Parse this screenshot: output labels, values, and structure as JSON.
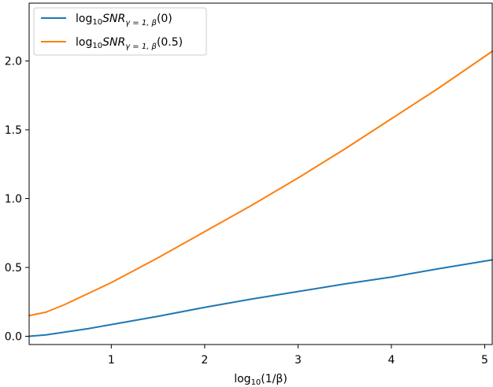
{
  "chart_data": {
    "type": "line",
    "xlabel_main": "log",
    "xlabel_sub": "10",
    "xlabel_rest": "(1/β)",
    "xlim": [
      0.12,
      5.08
    ],
    "ylim": [
      -0.06,
      2.42
    ],
    "xticks": [
      1,
      2,
      3,
      4,
      5
    ],
    "xtick_labels": [
      "1",
      "2",
      "3",
      "4",
      "5"
    ],
    "yticks": [
      0.0,
      0.5,
      1.0,
      1.5,
      2.0
    ],
    "ytick_labels": [
      "0.0",
      "0.5",
      "1.0",
      "1.5",
      "2.0"
    ],
    "grid": false,
    "legend_position": "top-left",
    "series": [
      {
        "name": "log10SNRγ=1,β(0)",
        "legend_main": "log",
        "legend_sub1": "10",
        "legend_snr": "SNR",
        "legend_sub2": "γ = 1, β",
        "legend_arg": "(0)",
        "color": "#1f77b4",
        "x": [
          0.12,
          0.3,
          0.5,
          0.75,
          1.0,
          1.25,
          1.5,
          2.0,
          2.5,
          3.0,
          3.5,
          4.0,
          4.5,
          5.08
        ],
        "y": [
          0.0,
          0.01,
          0.03,
          0.055,
          0.085,
          0.115,
          0.145,
          0.21,
          0.27,
          0.325,
          0.38,
          0.43,
          0.49,
          0.555
        ]
      },
      {
        "name": "log10SNRγ=1,β(0.5)",
        "legend_main": "log",
        "legend_sub1": "10",
        "legend_snr": "SNR",
        "legend_sub2": "γ = 1, β",
        "legend_arg": "(0.5)",
        "color": "#ff7f0e",
        "x": [
          0.12,
          0.3,
          0.5,
          0.75,
          1.0,
          1.25,
          1.5,
          2.0,
          2.5,
          3.0,
          3.5,
          4.0,
          4.5,
          5.08
        ],
        "y": [
          0.15,
          0.175,
          0.23,
          0.31,
          0.39,
          0.48,
          0.57,
          0.76,
          0.95,
          1.15,
          1.36,
          1.58,
          1.8,
          2.07
        ]
      }
    ]
  }
}
